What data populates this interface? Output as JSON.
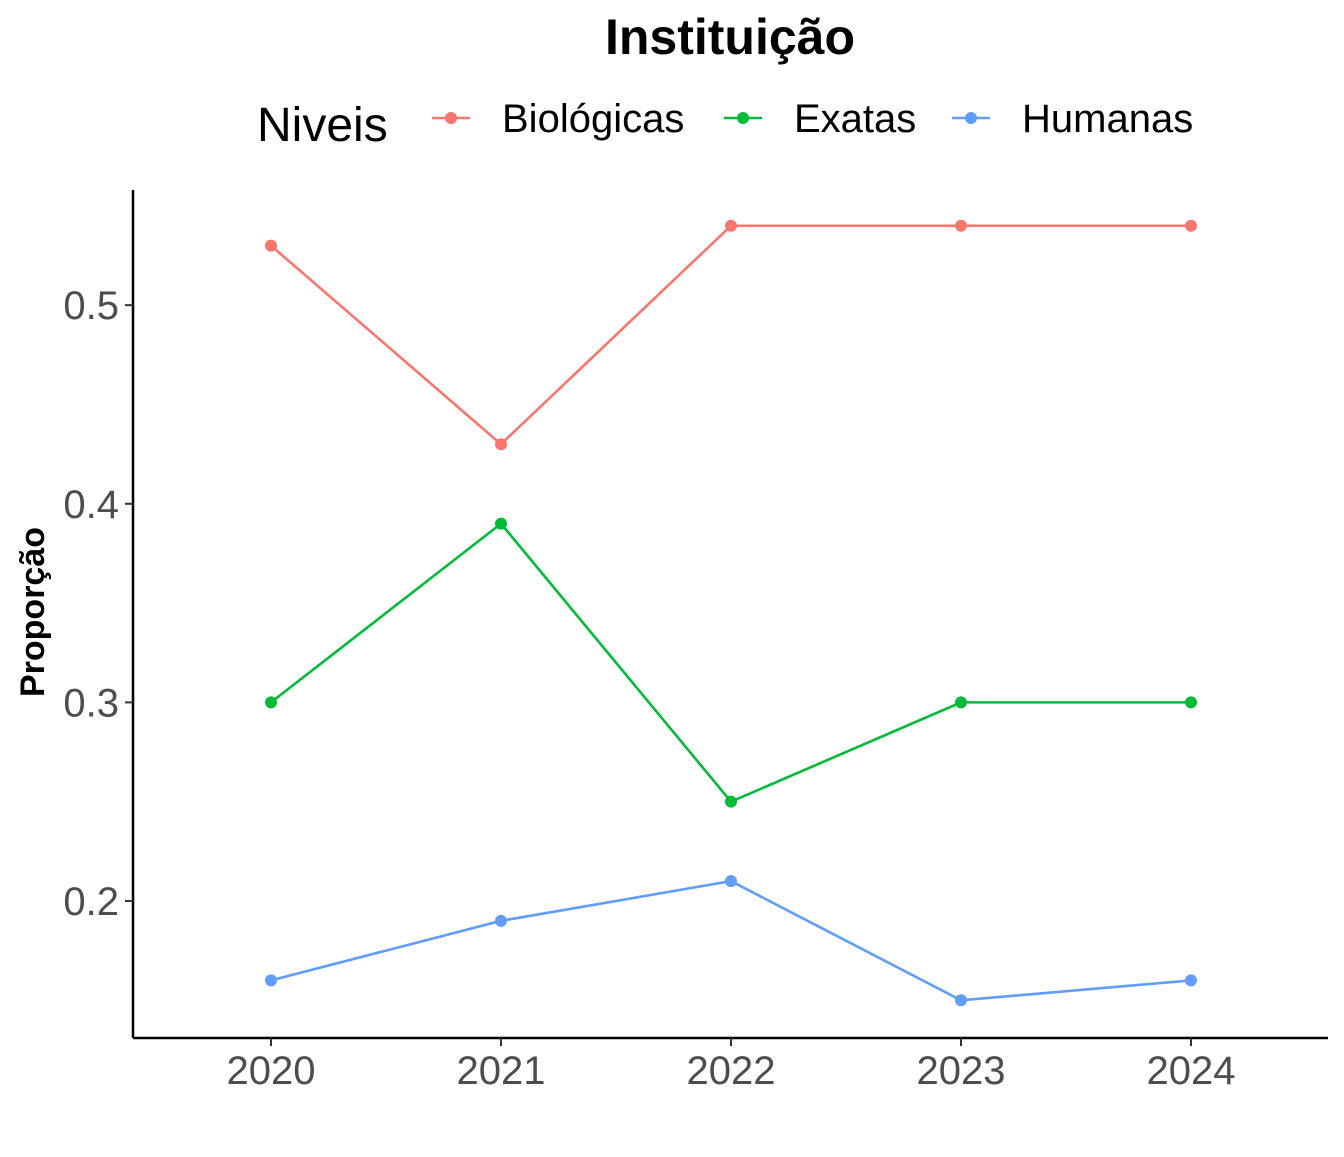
{
  "chart_data": {
    "type": "line",
    "title": "Instituição",
    "xlabel": "",
    "ylabel": "Proporção",
    "legend": {
      "title": "Niveis",
      "position": "top"
    },
    "x": [
      "2020",
      "2021",
      "2022",
      "2023",
      "2024"
    ],
    "yticks": [
      "0.2",
      "0.3",
      "0.4",
      "0.5"
    ],
    "ylim": [
      0.131,
      0.558
    ],
    "grid": false,
    "series": [
      {
        "name": "Biológicas",
        "color": "#F8766D",
        "values": [
          0.53,
          0.43,
          0.54,
          0.54,
          0.54
        ]
      },
      {
        "name": "Exatas",
        "color": "#00BA38",
        "values": [
          0.3,
          0.39,
          0.25,
          0.3,
          0.3
        ]
      },
      {
        "name": "Humanas",
        "color": "#619CFF",
        "values": [
          0.16,
          0.19,
          0.21,
          0.15,
          0.16
        ]
      }
    ]
  }
}
